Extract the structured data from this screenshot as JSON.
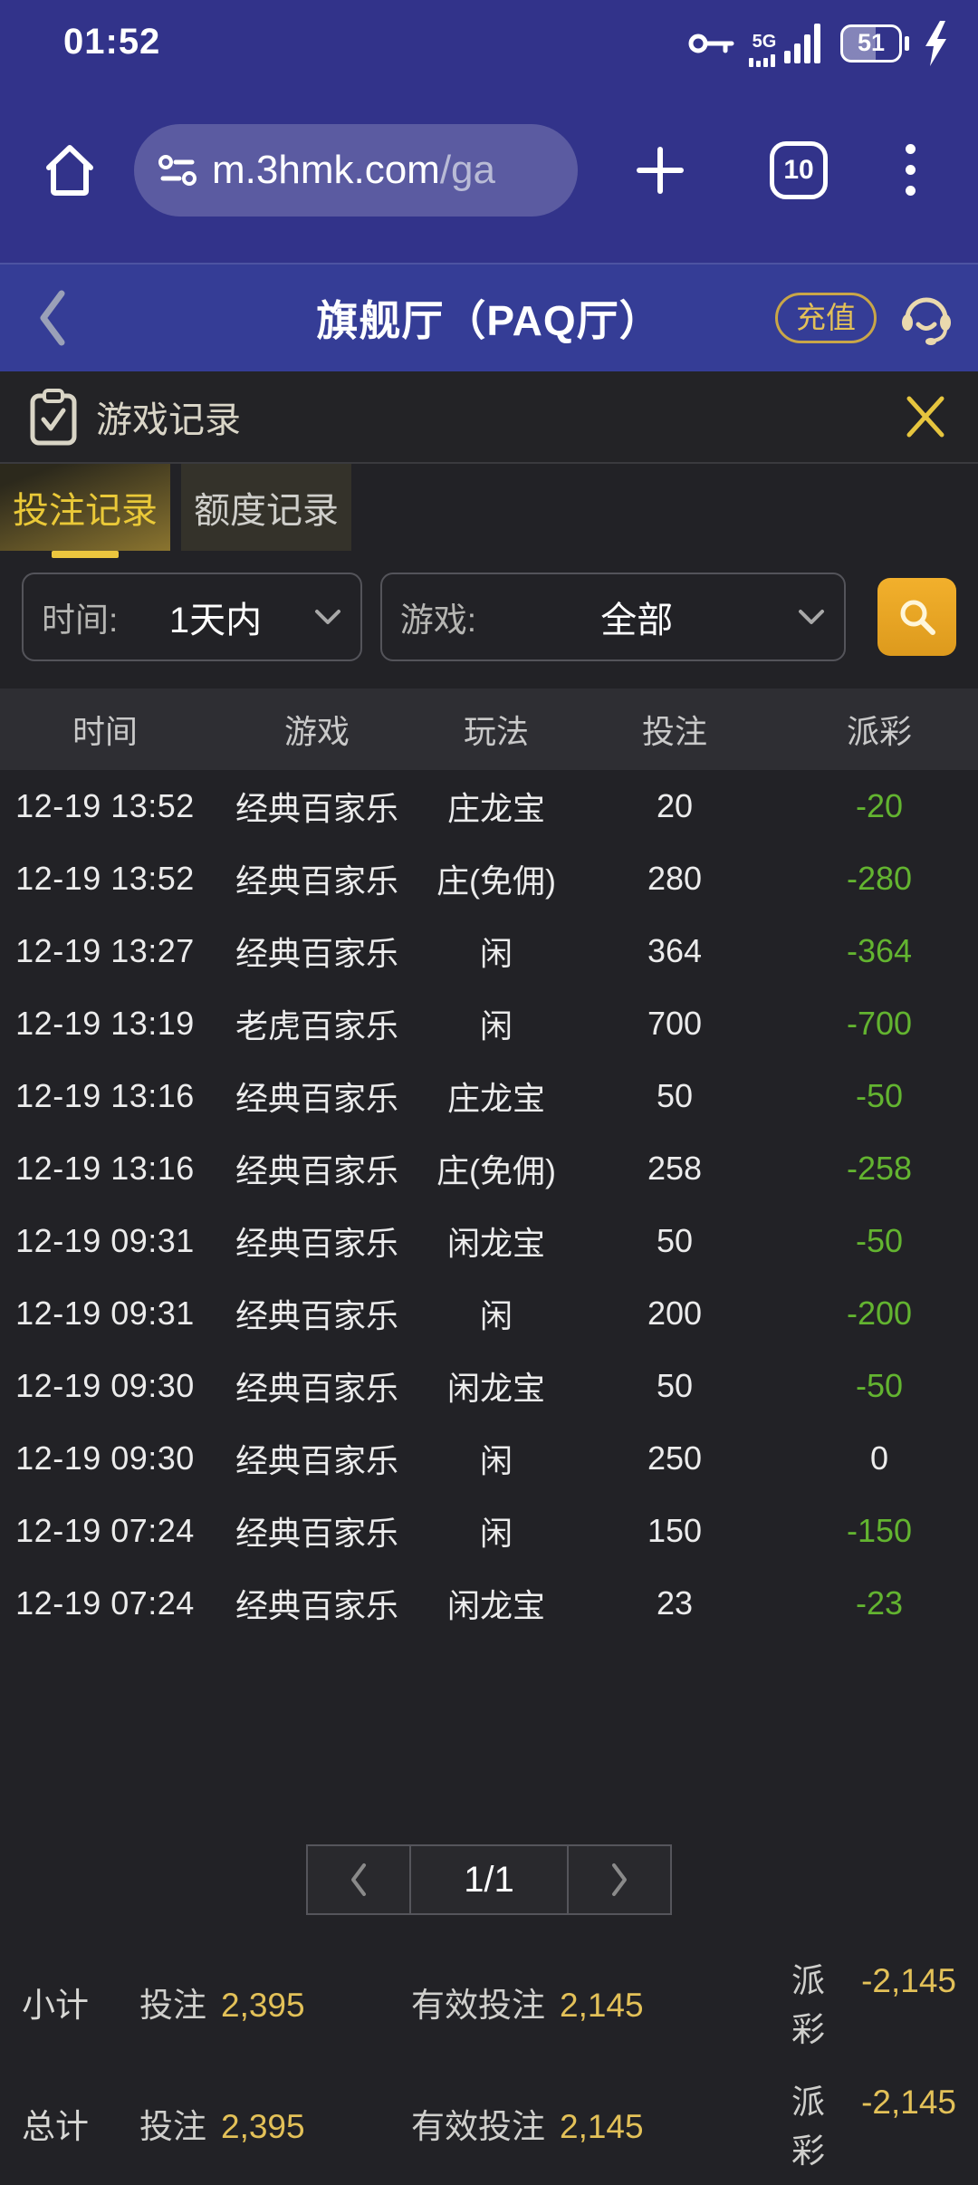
{
  "status_bar": {
    "time": "01:52",
    "network": "5G",
    "battery_percent": "51"
  },
  "browser": {
    "url_main": "m.3hmk.com",
    "url_path": "/ga",
    "tab_count": "10"
  },
  "header": {
    "title": "旗舰厅（PAQ厅）",
    "recharge_label": "充值"
  },
  "panel": {
    "title": "游戏记录"
  },
  "tabs": [
    {
      "label": "投注记录",
      "active": true
    },
    {
      "label": "额度记录",
      "active": false
    }
  ],
  "filters": {
    "time_label": "时间:",
    "time_value": "1天内",
    "game_label": "游戏:",
    "game_value": "全部"
  },
  "table": {
    "headers": [
      "时间",
      "游戏",
      "玩法",
      "投注",
      "派彩"
    ],
    "rows": [
      {
        "time": "12-19 13:52",
        "game": "经典百家乐",
        "play": "庄龙宝",
        "bet": "20",
        "payout": "-20"
      },
      {
        "time": "12-19 13:52",
        "game": "经典百家乐",
        "play": "庄(免佣)",
        "bet": "280",
        "payout": "-280"
      },
      {
        "time": "12-19 13:27",
        "game": "经典百家乐",
        "play": "闲",
        "bet": "364",
        "payout": "-364"
      },
      {
        "time": "12-19 13:19",
        "game": "老虎百家乐",
        "play": "闲",
        "bet": "700",
        "payout": "-700"
      },
      {
        "time": "12-19 13:16",
        "game": "经典百家乐",
        "play": "庄龙宝",
        "bet": "50",
        "payout": "-50"
      },
      {
        "time": "12-19 13:16",
        "game": "经典百家乐",
        "play": "庄(免佣)",
        "bet": "258",
        "payout": "-258"
      },
      {
        "time": "12-19 09:31",
        "game": "经典百家乐",
        "play": "闲龙宝",
        "bet": "50",
        "payout": "-50"
      },
      {
        "time": "12-19 09:31",
        "game": "经典百家乐",
        "play": "闲",
        "bet": "200",
        "payout": "-200"
      },
      {
        "time": "12-19 09:30",
        "game": "经典百家乐",
        "play": "闲龙宝",
        "bet": "50",
        "payout": "-50"
      },
      {
        "time": "12-19 09:30",
        "game": "经典百家乐",
        "play": "闲",
        "bet": "250",
        "payout": "0"
      },
      {
        "time": "12-19 07:24",
        "game": "经典百家乐",
        "play": "闲",
        "bet": "150",
        "payout": "-150"
      },
      {
        "time": "12-19 07:24",
        "game": "经典百家乐",
        "play": "闲龙宝",
        "bet": "23",
        "payout": "-23"
      }
    ]
  },
  "pagination": {
    "current": "1/1"
  },
  "summary": [
    {
      "label": "小计",
      "bet_label": "投注",
      "bet": "2,395",
      "valid_label": "有效投注",
      "valid": "2,145",
      "payout_label": "派彩",
      "payout": "-2,145"
    },
    {
      "label": "总计",
      "bet_label": "投注",
      "bet": "2,395",
      "valid_label": "有效投注",
      "valid": "2,145",
      "payout_label": "派彩",
      "payout": "-2,145"
    }
  ],
  "colors": {
    "chrome_indigo": "#32338a",
    "header_indigo": "#353d96",
    "content_bg": "#222226",
    "accent_gold": "#ecc63e",
    "value_gold": "#e3c158",
    "negative_green": "#63b430"
  }
}
